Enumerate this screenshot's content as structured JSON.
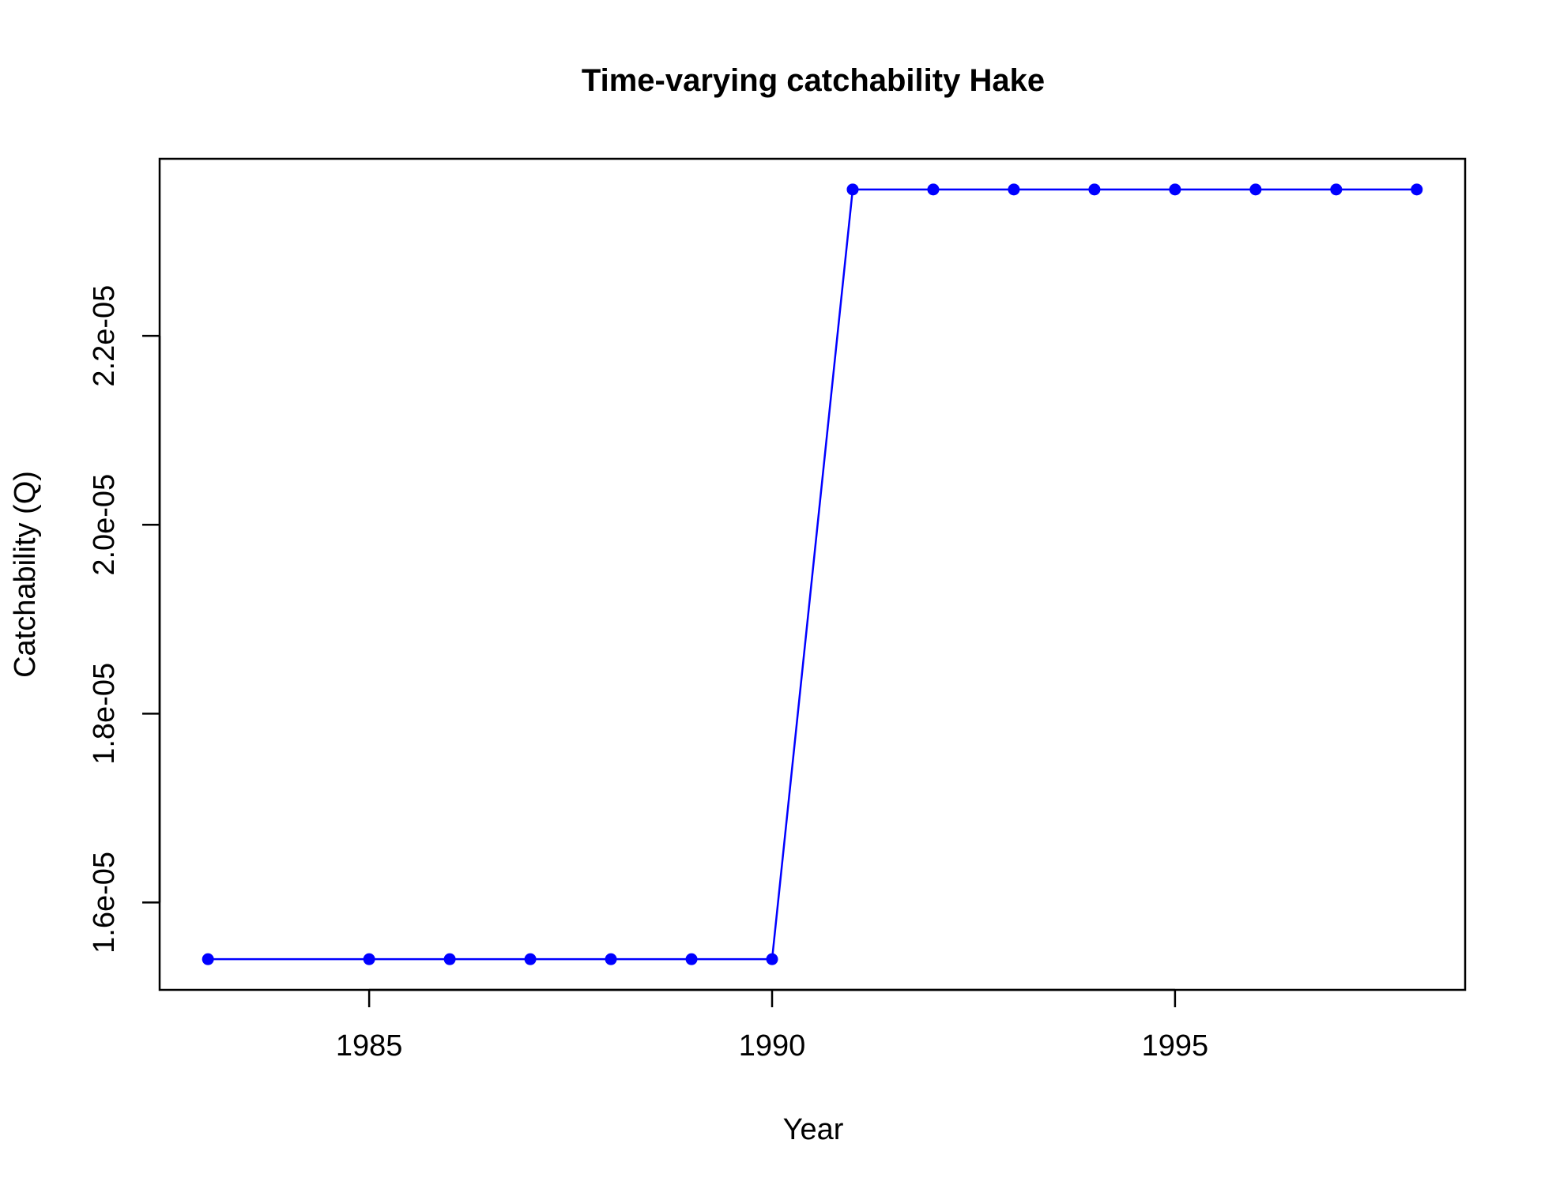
{
  "chart_data": {
    "type": "line",
    "title": "Time-varying catchability Hake",
    "xlabel": "Year",
    "ylabel": "Catchability (Q)",
    "x": [
      1983,
      1985,
      1986,
      1987,
      1988,
      1989,
      1990,
      1991,
      1992,
      1993,
      1994,
      1995,
      1996,
      1997,
      1998
    ],
    "series": [
      {
        "values": [
          1.54e-05,
          1.54e-05,
          1.54e-05,
          1.54e-05,
          1.54e-05,
          1.54e-05,
          1.54e-05,
          2.355e-05,
          2.355e-05,
          2.355e-05,
          2.355e-05,
          2.355e-05,
          2.355e-05,
          2.355e-05,
          2.355e-05
        ],
        "color": "#0000FF",
        "marker": "filled-circle"
      }
    ],
    "xlim": [
      1982.4,
      1998.6
    ],
    "ylim": [
      1.5075e-05,
      2.3875e-05
    ],
    "xticks": [
      {
        "value": 1985,
        "label": "1985"
      },
      {
        "value": 1990,
        "label": "1990"
      },
      {
        "value": 1995,
        "label": "1995"
      }
    ],
    "yticks": [
      {
        "value": 1.6e-05,
        "label": "1.6e-05"
      },
      {
        "value": 1.8e-05,
        "label": "1.8e-05"
      },
      {
        "value": 2e-05,
        "label": "2.0e-05"
      },
      {
        "value": 2.2e-05,
        "label": "2.2e-05"
      }
    ],
    "grid": false,
    "legend": "none"
  }
}
